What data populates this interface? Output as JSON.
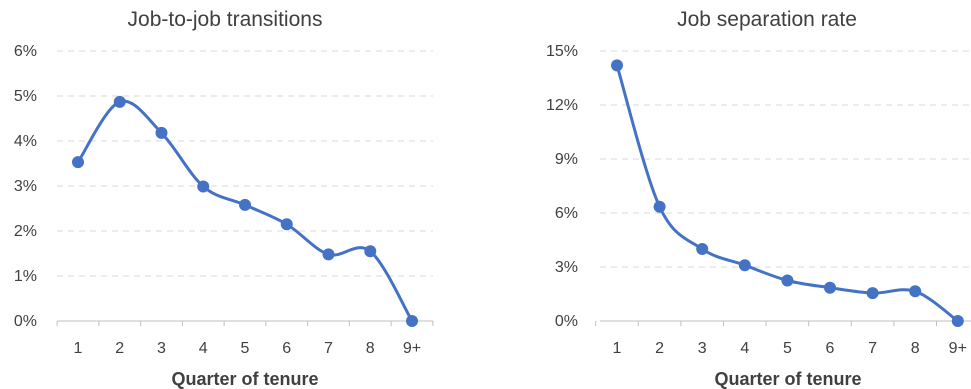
{
  "chart_data": [
    {
      "type": "line",
      "title": "Job-to-job transitions",
      "xlabel": "Quarter of tenure",
      "ylabel": "",
      "categories": [
        "1",
        "2",
        "3",
        "4",
        "5",
        "6",
        "7",
        "8",
        "9+"
      ],
      "values": [
        0.0353,
        0.0487,
        0.0418,
        0.0299,
        0.0258,
        0.0215,
        0.0148,
        0.0155,
        0.0
      ],
      "ylim": [
        0,
        0.06
      ],
      "yticks": [
        "0%",
        "1%",
        "2%",
        "3%",
        "4%",
        "5%",
        "6%"
      ],
      "grid": true,
      "color": "#4472c4"
    },
    {
      "type": "line",
      "title": "Job separation rate",
      "xlabel": "Quarter of tenure",
      "ylabel": "",
      "categories": [
        "1",
        "2",
        "3",
        "4",
        "5",
        "6",
        "7",
        "8",
        "9+"
      ],
      "values": [
        0.142,
        0.0635,
        0.04,
        0.031,
        0.0225,
        0.0185,
        0.0155,
        0.0165,
        0.0
      ],
      "ylim": [
        0,
        0.15
      ],
      "yticks": [
        "0%",
        "3%",
        "6%",
        "9%",
        "12%",
        "15%"
      ],
      "grid": true,
      "color": "#4472c4"
    }
  ]
}
